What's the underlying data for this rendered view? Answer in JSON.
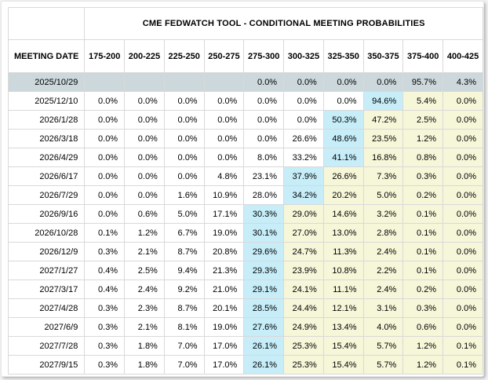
{
  "table": {
    "title": "CME FEDWATCH TOOL - CONDITIONAL MEETING PROBABILITIES",
    "columns": [
      "MEETING DATE",
      "175-200",
      "200-225",
      "225-250",
      "250-275",
      "275-300",
      "300-325",
      "325-350",
      "350-375",
      "375-400",
      "400-425"
    ],
    "rows": [
      {
        "date": "2025/10/29",
        "values": [
          "",
          "",
          "",
          "",
          "0.0%",
          "0.0%",
          "0.0%",
          "0.0%",
          "95.7%",
          "4.3%"
        ],
        "current": true
      },
      {
        "date": "2025/12/10",
        "values": [
          "0.0%",
          "0.0%",
          "0.0%",
          "0.0%",
          "0.0%",
          "0.0%",
          "0.0%",
          "94.6%",
          "5.4%",
          "0.0%"
        ],
        "peak_col": 7
      },
      {
        "date": "2026/1/28",
        "values": [
          "0.0%",
          "0.0%",
          "0.0%",
          "0.0%",
          "0.0%",
          "0.0%",
          "50.3%",
          "47.2%",
          "2.5%",
          "0.0%"
        ],
        "peak_col": 6
      },
      {
        "date": "2026/3/18",
        "values": [
          "0.0%",
          "0.0%",
          "0.0%",
          "0.0%",
          "0.0%",
          "26.6%",
          "48.6%",
          "23.5%",
          "1.2%",
          "0.0%"
        ],
        "peak_col": 6
      },
      {
        "date": "2026/4/29",
        "values": [
          "0.0%",
          "0.0%",
          "0.0%",
          "0.0%",
          "8.0%",
          "33.2%",
          "41.1%",
          "16.8%",
          "0.8%",
          "0.0%"
        ],
        "peak_col": 6
      },
      {
        "date": "2026/6/17",
        "values": [
          "0.0%",
          "0.0%",
          "0.0%",
          "4.8%",
          "23.1%",
          "37.9%",
          "26.6%",
          "7.3%",
          "0.3%",
          "0.0%"
        ],
        "peak_col": 5
      },
      {
        "date": "2026/7/29",
        "values": [
          "0.0%",
          "0.0%",
          "1.6%",
          "10.9%",
          "28.0%",
          "34.2%",
          "20.2%",
          "5.0%",
          "0.2%",
          "0.0%"
        ],
        "peak_col": 5
      },
      {
        "date": "2026/9/16",
        "values": [
          "0.0%",
          "0.6%",
          "5.0%",
          "17.1%",
          "30.3%",
          "29.0%",
          "14.6%",
          "3.2%",
          "0.1%",
          "0.0%"
        ],
        "peak_col": 4
      },
      {
        "date": "2026/10/28",
        "values": [
          "0.1%",
          "1.2%",
          "6.7%",
          "19.0%",
          "30.1%",
          "27.0%",
          "13.0%",
          "2.8%",
          "0.1%",
          "0.0%"
        ],
        "peak_col": 4
      },
      {
        "date": "2026/12/9",
        "values": [
          "0.3%",
          "2.1%",
          "8.7%",
          "20.8%",
          "29.6%",
          "24.7%",
          "11.3%",
          "2.4%",
          "0.1%",
          "0.0%"
        ],
        "peak_col": 4
      },
      {
        "date": "2027/1/27",
        "values": [
          "0.4%",
          "2.5%",
          "9.4%",
          "21.3%",
          "29.3%",
          "23.9%",
          "10.8%",
          "2.2%",
          "0.1%",
          "0.0%"
        ],
        "peak_col": 4
      },
      {
        "date": "2027/3/17",
        "values": [
          "0.4%",
          "2.4%",
          "9.2%",
          "21.0%",
          "29.1%",
          "24.1%",
          "11.1%",
          "2.4%",
          "0.2%",
          "0.0%"
        ],
        "peak_col": 4
      },
      {
        "date": "2027/4/28",
        "values": [
          "0.3%",
          "2.3%",
          "8.7%",
          "20.1%",
          "28.5%",
          "24.4%",
          "12.1%",
          "3.1%",
          "0.3%",
          "0.0%"
        ],
        "peak_col": 4
      },
      {
        "date": "2027/6/9",
        "values": [
          "0.3%",
          "2.1%",
          "8.1%",
          "19.0%",
          "27.6%",
          "24.9%",
          "13.4%",
          "4.0%",
          "0.6%",
          "0.0%"
        ],
        "peak_col": 4
      },
      {
        "date": "2027/7/28",
        "values": [
          "0.3%",
          "1.8%",
          "7.0%",
          "17.0%",
          "26.1%",
          "25.3%",
          "15.4%",
          "5.7%",
          "1.2%",
          "0.1%"
        ],
        "peak_col": 4
      },
      {
        "date": "2027/9/15",
        "values": [
          "0.3%",
          "1.8%",
          "7.0%",
          "17.0%",
          "26.1%",
          "25.3%",
          "15.4%",
          "5.7%",
          "1.2%",
          "0.1%"
        ],
        "peak_col": 4
      }
    ]
  },
  "colors": {
    "current_row_bg": "#cdd8dc",
    "peak_cell_bg": "#c6edf8",
    "above_peak_bg": "#f6f6d9",
    "grid_border": "#d9d9d9",
    "text": "#000000"
  }
}
